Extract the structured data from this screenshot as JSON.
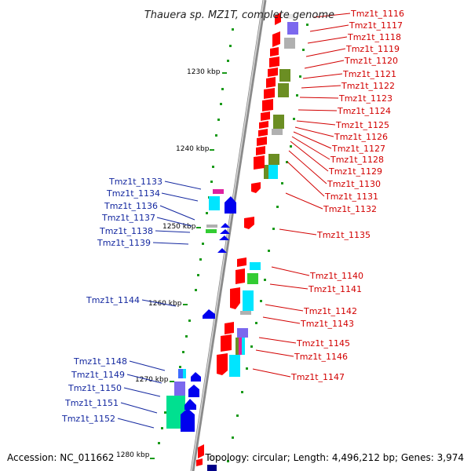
{
  "title": "Thauera sp. MZ1T, complete genome",
  "footer": {
    "accession": "Accession: NC_011662",
    "stats": "Topology: circular; Length: 4,496,212 bp; Genes: 3,974"
  },
  "kbp_labels": [
    "1230 kbp",
    "1240 kbp",
    "1250 kbp",
    "1260 kbp",
    "1270 kbp",
    "1280 kbp"
  ],
  "right_genes": [
    "Tmz1t_1116",
    "Tmz1t_1117",
    "Tmz1t_1118",
    "Tmz1t_1119",
    "Tmz1t_1120",
    "Tmz1t_1121",
    "Tmz1t_1122",
    "Tmz1t_1123",
    "Tmz1t_1124",
    "Tmz1t_1125",
    "Tmz1t_1126",
    "Tmz1t_1127",
    "Tmz1t_1128",
    "Tmz1t_1129",
    "Tmz1t_1130",
    "Tmz1t_1131",
    "Tmz1t_1132",
    "Tmz1t_1135",
    "Tmz1t_1140",
    "Tmz1t_1141",
    "Tmz1t_1142",
    "Tmz1t_1143",
    "Tmz1t_1145",
    "Tmz1t_1146",
    "Tmz1t_1147"
  ],
  "left_genes": [
    "Tmz1t_1133",
    "Tmz1t_1134",
    "Tmz1t_1136",
    "Tmz1t_1137",
    "Tmz1t_1138",
    "Tmz1t_1139",
    "Tmz1t_1144",
    "Tmz1t_1148",
    "Tmz1t_1149",
    "Tmz1t_1150",
    "Tmz1t_1151",
    "Tmz1t_1152"
  ],
  "colors": {
    "forward_cds": "#ff0000",
    "reverse_cds": "#0000ee",
    "backbone": "#999999",
    "tick": "#1a9a1a",
    "cog_olive": "#6b8e23",
    "cog_cyan": "#00e5ff",
    "cog_grey": "#b0b0b0",
    "cog_violet": "#7b68ee",
    "cog_mint": "#00e090",
    "cog_magenta": "#e020a0"
  }
}
